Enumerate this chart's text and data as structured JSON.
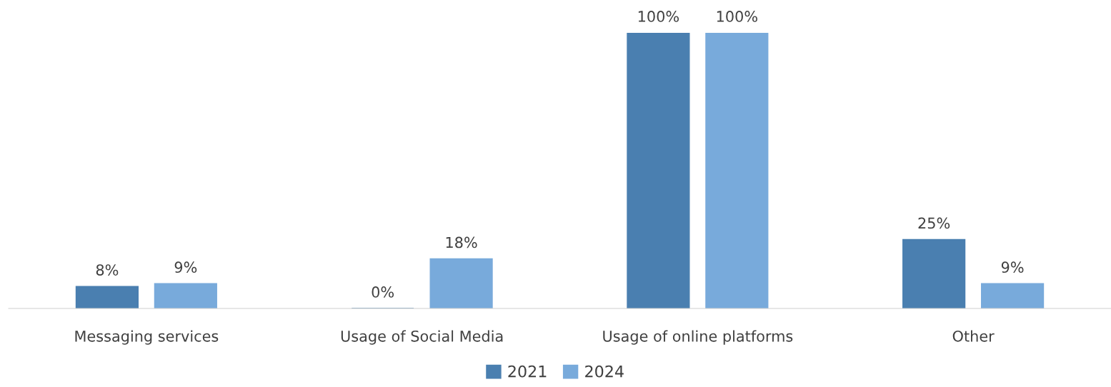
{
  "chart_data": {
    "type": "bar",
    "categories": [
      "Messaging services",
      "Usage of Social Media",
      "Usage of online platforms",
      "Other"
    ],
    "series": [
      {
        "name": "2021",
        "color": "#4a7fb0",
        "values": [
          8,
          0,
          100,
          25
        ],
        "value_labels": [
          "8%",
          "0%",
          "100%",
          "25%"
        ]
      },
      {
        "name": "2024",
        "color": "#78aadb",
        "values": [
          9,
          18,
          100,
          9
        ],
        "value_labels": [
          "9%",
          "18%",
          "100%",
          "9%"
        ]
      }
    ],
    "legend": "bottom",
    "grid": false
  }
}
